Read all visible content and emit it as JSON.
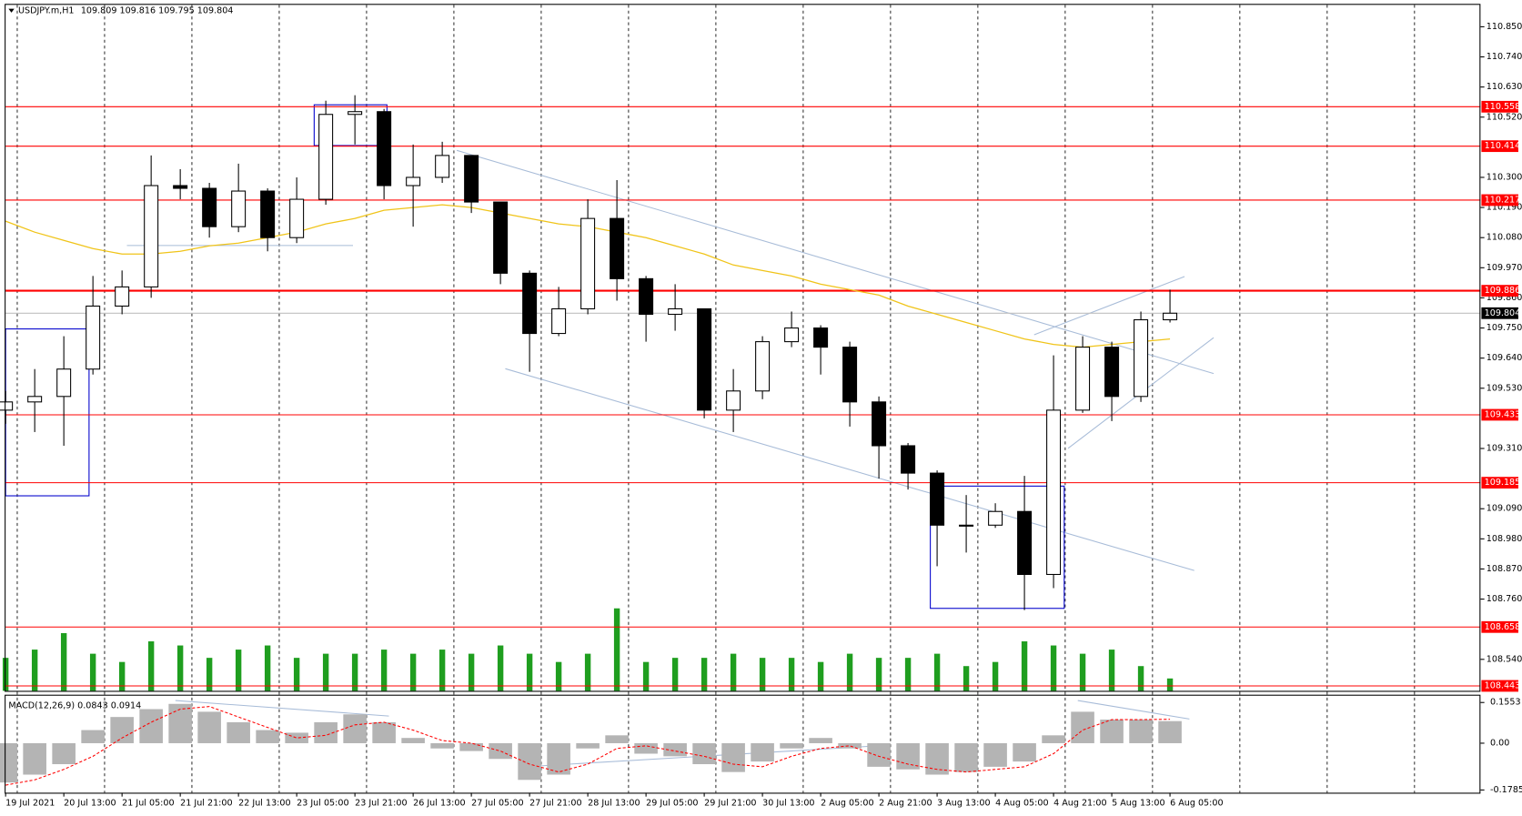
{
  "chart_data": {
    "type": "candlestick",
    "header": {
      "symbol": "USDJPY.m,H1",
      "ohlc": [
        109.809,
        109.816,
        109.795,
        109.804
      ]
    },
    "x": [
      "19 Jul 2021",
      null,
      "20 Jul 13:00",
      null,
      "21 Jul 05:00",
      null,
      "21 Jul 21:00",
      null,
      "22 Jul 13:00",
      null,
      "23 Jul 05:00",
      null,
      "23 Jul 21:00",
      null,
      "26 Jul 13:00",
      null,
      "27 Jul 05:00",
      null,
      "27 Jul 21:00",
      null,
      "28 Jul 13:00",
      null,
      "29 Jul 05:00",
      null,
      "29 Jul 21:00",
      null,
      "30 Jul 13:00",
      null,
      "2 Aug 05:00",
      null,
      "2 Aug 21:00",
      null,
      "3 Aug 13:00",
      null,
      "4 Aug 05:00",
      null,
      "4 Aug 21:00",
      null,
      "5 Aug 13:00",
      null,
      "6 Aug 05:00"
    ],
    "candles": {
      "open": [
        109.45,
        109.48,
        109.5,
        109.6,
        109.83,
        109.9,
        110.27,
        110.26,
        110.12,
        110.25,
        110.08,
        110.22,
        110.53,
        110.54,
        110.27,
        110.3,
        110.38,
        110.21,
        109.95,
        109.73,
        109.82,
        110.15,
        109.93,
        109.8,
        109.82,
        109.45,
        109.52,
        109.7,
        109.75,
        109.68,
        109.48,
        109.32,
        109.22,
        109.03,
        109.03,
        109.08,
        108.85,
        109.45,
        109.68,
        109.5,
        109.78
      ],
      "high": [
        109.52,
        109.6,
        109.72,
        109.94,
        109.96,
        110.38,
        110.33,
        110.28,
        110.35,
        110.26,
        110.3,
        110.58,
        110.6,
        110.55,
        110.42,
        110.43,
        110.38,
        110.21,
        109.96,
        109.9,
        110.22,
        110.29,
        109.94,
        109.91,
        109.82,
        109.6,
        109.72,
        109.81,
        109.76,
        109.7,
        109.5,
        109.33,
        109.23,
        109.14,
        109.11,
        109.21,
        109.65,
        109.72,
        109.7,
        109.81,
        109.89
      ],
      "low": [
        109.4,
        109.37,
        109.32,
        109.58,
        109.8,
        109.86,
        110.22,
        110.08,
        110.1,
        110.03,
        110.06,
        110.2,
        110.42,
        110.22,
        110.12,
        110.28,
        110.17,
        109.91,
        109.59,
        109.72,
        109.8,
        109.85,
        109.7,
        109.74,
        109.42,
        109.37,
        109.49,
        109.68,
        109.58,
        109.39,
        109.2,
        109.16,
        108.88,
        108.93,
        109.02,
        108.72,
        108.8,
        109.44,
        109.41,
        109.48,
        109.77
      ],
      "close": [
        109.48,
        109.5,
        109.6,
        109.83,
        109.9,
        110.27,
        110.26,
        110.12,
        110.25,
        110.08,
        110.22,
        110.53,
        110.54,
        110.27,
        110.3,
        110.38,
        110.21,
        109.95,
        109.73,
        109.82,
        110.15,
        109.93,
        109.8,
        109.82,
        109.45,
        109.52,
        109.7,
        109.75,
        109.68,
        109.48,
        109.32,
        109.22,
        109.03,
        109.03,
        109.08,
        108.85,
        109.45,
        109.68,
        109.5,
        109.78,
        109.804
      ]
    },
    "moving_average": {
      "color": "#f0c419",
      "values": [
        110.14,
        110.1,
        110.07,
        110.04,
        110.02,
        110.02,
        110.03,
        110.05,
        110.06,
        110.08,
        110.1,
        110.13,
        110.15,
        110.18,
        110.19,
        110.2,
        110.19,
        110.17,
        110.15,
        110.13,
        110.12,
        110.1,
        110.08,
        110.05,
        110.02,
        109.98,
        109.96,
        109.94,
        109.91,
        109.89,
        109.87,
        109.83,
        109.8,
        109.77,
        109.74,
        109.71,
        109.69,
        109.68,
        109.69,
        109.7,
        109.71
      ]
    },
    "volume": {
      "color": "#1f9e1f",
      "values": [
        40,
        50,
        70,
        45,
        35,
        60,
        55,
        40,
        50,
        55,
        40,
        45,
        45,
        50,
        45,
        50,
        45,
        55,
        45,
        35,
        45,
        100,
        35,
        40,
        40,
        45,
        40,
        40,
        35,
        45,
        40,
        40,
        45,
        30,
        35,
        60,
        55,
        45,
        50,
        30,
        15
      ]
    },
    "ylim": [
      108.425,
      110.93
    ],
    "yticks": [
      {
        "value": 110.85,
        "label": "110.850"
      },
      {
        "value": 110.74,
        "label": "110.740"
      },
      {
        "value": 110.63,
        "label": "110.630"
      },
      {
        "value": 110.52,
        "label": "110.520"
      },
      {
        "value": 110.3,
        "label": "110.300"
      },
      {
        "value": 110.19,
        "label": "110.190"
      },
      {
        "value": 110.08,
        "label": "110.080"
      },
      {
        "value": 109.97,
        "label": "109.970"
      },
      {
        "value": 109.86,
        "label": "109.860"
      },
      {
        "value": 109.75,
        "label": "109.750"
      },
      {
        "value": 109.64,
        "label": "109.640"
      },
      {
        "value": 109.53,
        "label": "109.530"
      },
      {
        "value": 109.31,
        "label": "109.310"
      },
      {
        "value": 109.09,
        "label": "109.090"
      },
      {
        "value": 108.98,
        "label": "108.980"
      },
      {
        "value": 108.87,
        "label": "108.870"
      },
      {
        "value": 108.76,
        "label": "108.760"
      },
      {
        "value": 108.54,
        "label": "108.540"
      }
    ],
    "levels": {
      "color": "#ff0000",
      "values": [
        110.558,
        110.414,
        110.217,
        109.886,
        109.433,
        109.185,
        108.658,
        108.443
      ]
    },
    "last_price": 109.804,
    "macd": {
      "title": "MACD(12,26,9)",
      "histogram_color": "#b4b4b4",
      "signal_color": "#ff0000",
      "values": [
        -0.15,
        -0.12,
        -0.08,
        0.05,
        0.1,
        0.13,
        0.15,
        0.12,
        0.08,
        0.05,
        0.04,
        0.08,
        0.11,
        0.08,
        0.02,
        -0.02,
        -0.03,
        -0.06,
        -0.14,
        -0.12,
        -0.02,
        0.03,
        -0.04,
        -0.05,
        -0.08,
        -0.11,
        -0.07,
        -0.02,
        0.02,
        -0.02,
        -0.09,
        -0.1,
        -0.12,
        -0.11,
        -0.09,
        -0.07,
        0.03,
        0.12,
        0.09,
        0.09,
        0.0843
      ],
      "signal": [
        -0.16,
        -0.14,
        -0.1,
        -0.05,
        0.02,
        0.08,
        0.13,
        0.14,
        0.1,
        0.06,
        0.02,
        0.03,
        0.07,
        0.08,
        0.05,
        0.01,
        0.0,
        -0.03,
        -0.08,
        -0.11,
        -0.08,
        -0.02,
        -0.01,
        -0.03,
        -0.05,
        -0.08,
        -0.09,
        -0.05,
        -0.02,
        -0.01,
        -0.05,
        -0.08,
        -0.1,
        -0.11,
        -0.1,
        -0.09,
        -0.04,
        0.05,
        0.09,
        0.09,
        0.0914
      ],
      "ylim": [
        -0.189,
        0.1813
      ],
      "yticks": [
        0.1553,
        {
          "value": 0,
          "label": "0.00"
        },
        -0.1785
      ]
    }
  }
}
